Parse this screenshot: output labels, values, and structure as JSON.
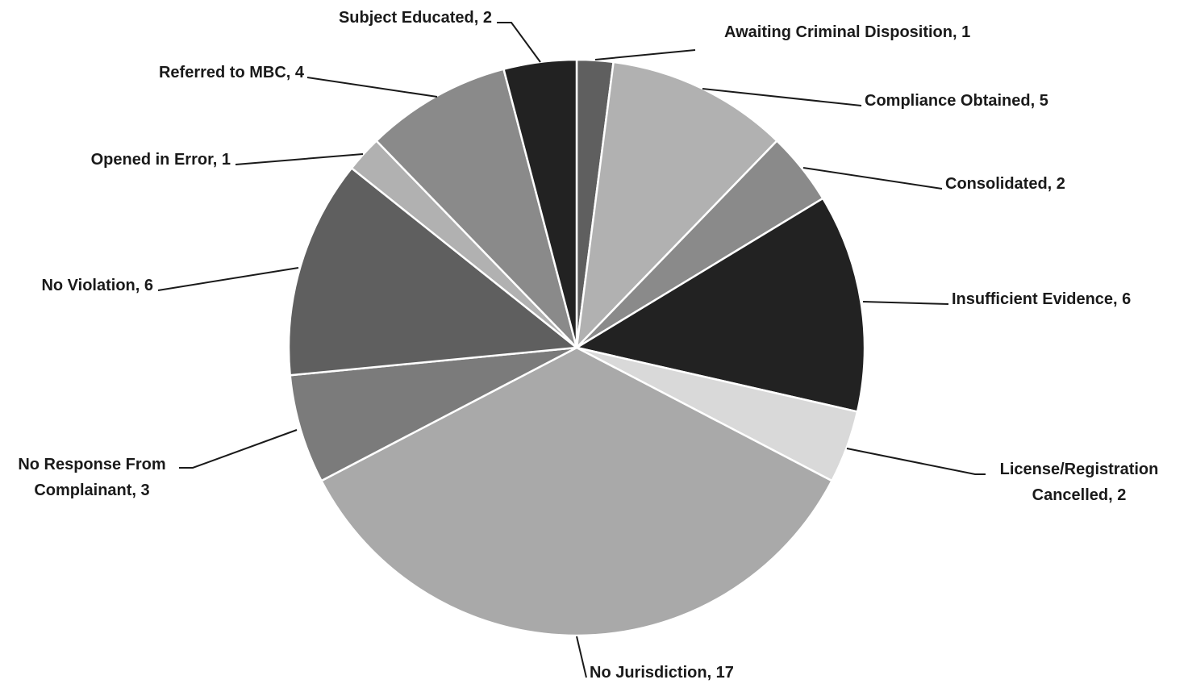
{
  "chart_data": {
    "type": "pie",
    "title": "",
    "start_angle_deg": 0,
    "direction": "clockwise",
    "label_format": "{name}, {value}",
    "slices": [
      {
        "name": "Awaiting Criminal Disposition",
        "value": 1,
        "color": "#5f5f5f"
      },
      {
        "name": "Compliance Obtained",
        "value": 5,
        "color": "#b1b1b1"
      },
      {
        "name": "Consolidated",
        "value": 2,
        "color": "#8a8a8a"
      },
      {
        "name": "Insufficient Evidence",
        "value": 6,
        "color": "#222222"
      },
      {
        "name": "License/Registration Cancelled",
        "value": 2,
        "color": "#d9d9d9"
      },
      {
        "name": "No Jurisdiction",
        "value": 17,
        "color": "#a9a9a9"
      },
      {
        "name": "No Response From Complainant",
        "value": 3,
        "color": "#7b7b7b"
      },
      {
        "name": "No Violation",
        "value": 6,
        "color": "#5f5f5f"
      },
      {
        "name": "Opened in Error",
        "value": 1,
        "color": "#b1b1b1"
      },
      {
        "name": "Referred to MBC",
        "value": 4,
        "color": "#8a8a8a"
      },
      {
        "name": "Subject Educated",
        "value": 2,
        "color": "#222222"
      }
    ]
  }
}
